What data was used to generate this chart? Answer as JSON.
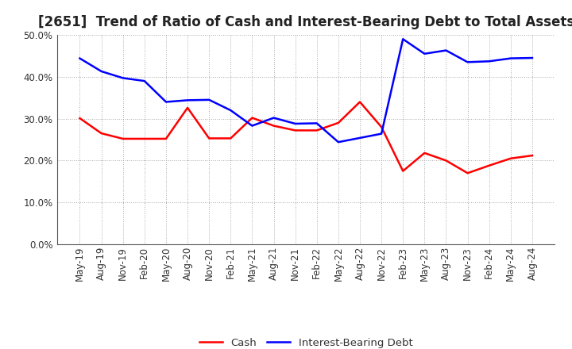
{
  "title": "[2651]  Trend of Ratio of Cash and Interest-Bearing Debt to Total Assets",
  "x_labels": [
    "May-19",
    "Aug-19",
    "Nov-19",
    "Feb-20",
    "May-20",
    "Aug-20",
    "Nov-20",
    "Feb-21",
    "May-21",
    "Aug-21",
    "Nov-21",
    "Feb-22",
    "May-22",
    "Aug-22",
    "Nov-22",
    "Feb-23",
    "May-23",
    "Aug-23",
    "Nov-23",
    "Feb-24",
    "May-24",
    "Aug-24"
  ],
  "cash": [
    0.301,
    0.265,
    0.252,
    0.252,
    0.252,
    0.326,
    0.253,
    0.253,
    0.302,
    0.283,
    0.272,
    0.272,
    0.29,
    0.34,
    0.28,
    0.175,
    0.218,
    0.2,
    0.17,
    0.188,
    0.205,
    0.212
  ],
  "debt": [
    0.444,
    0.413,
    0.397,
    0.39,
    0.34,
    0.344,
    0.345,
    0.32,
    0.283,
    0.302,
    0.288,
    0.289,
    0.244,
    0.254,
    0.264,
    0.49,
    0.455,
    0.463,
    0.435,
    0.437,
    0.444,
    0.445
  ],
  "cash_color": "#ff0000",
  "debt_color": "#0000ff",
  "background_color": "#ffffff",
  "grid_color": "#aaaaaa",
  "ylim": [
    0.0,
    0.5
  ],
  "yticks": [
    0.0,
    0.1,
    0.2,
    0.3,
    0.4,
    0.5
  ],
  "legend_cash": "Cash",
  "legend_debt": "Interest-Bearing Debt",
  "title_fontsize": 12,
  "axis_fontsize": 8.5,
  "legend_fontsize": 9.5,
  "line_width": 1.8
}
